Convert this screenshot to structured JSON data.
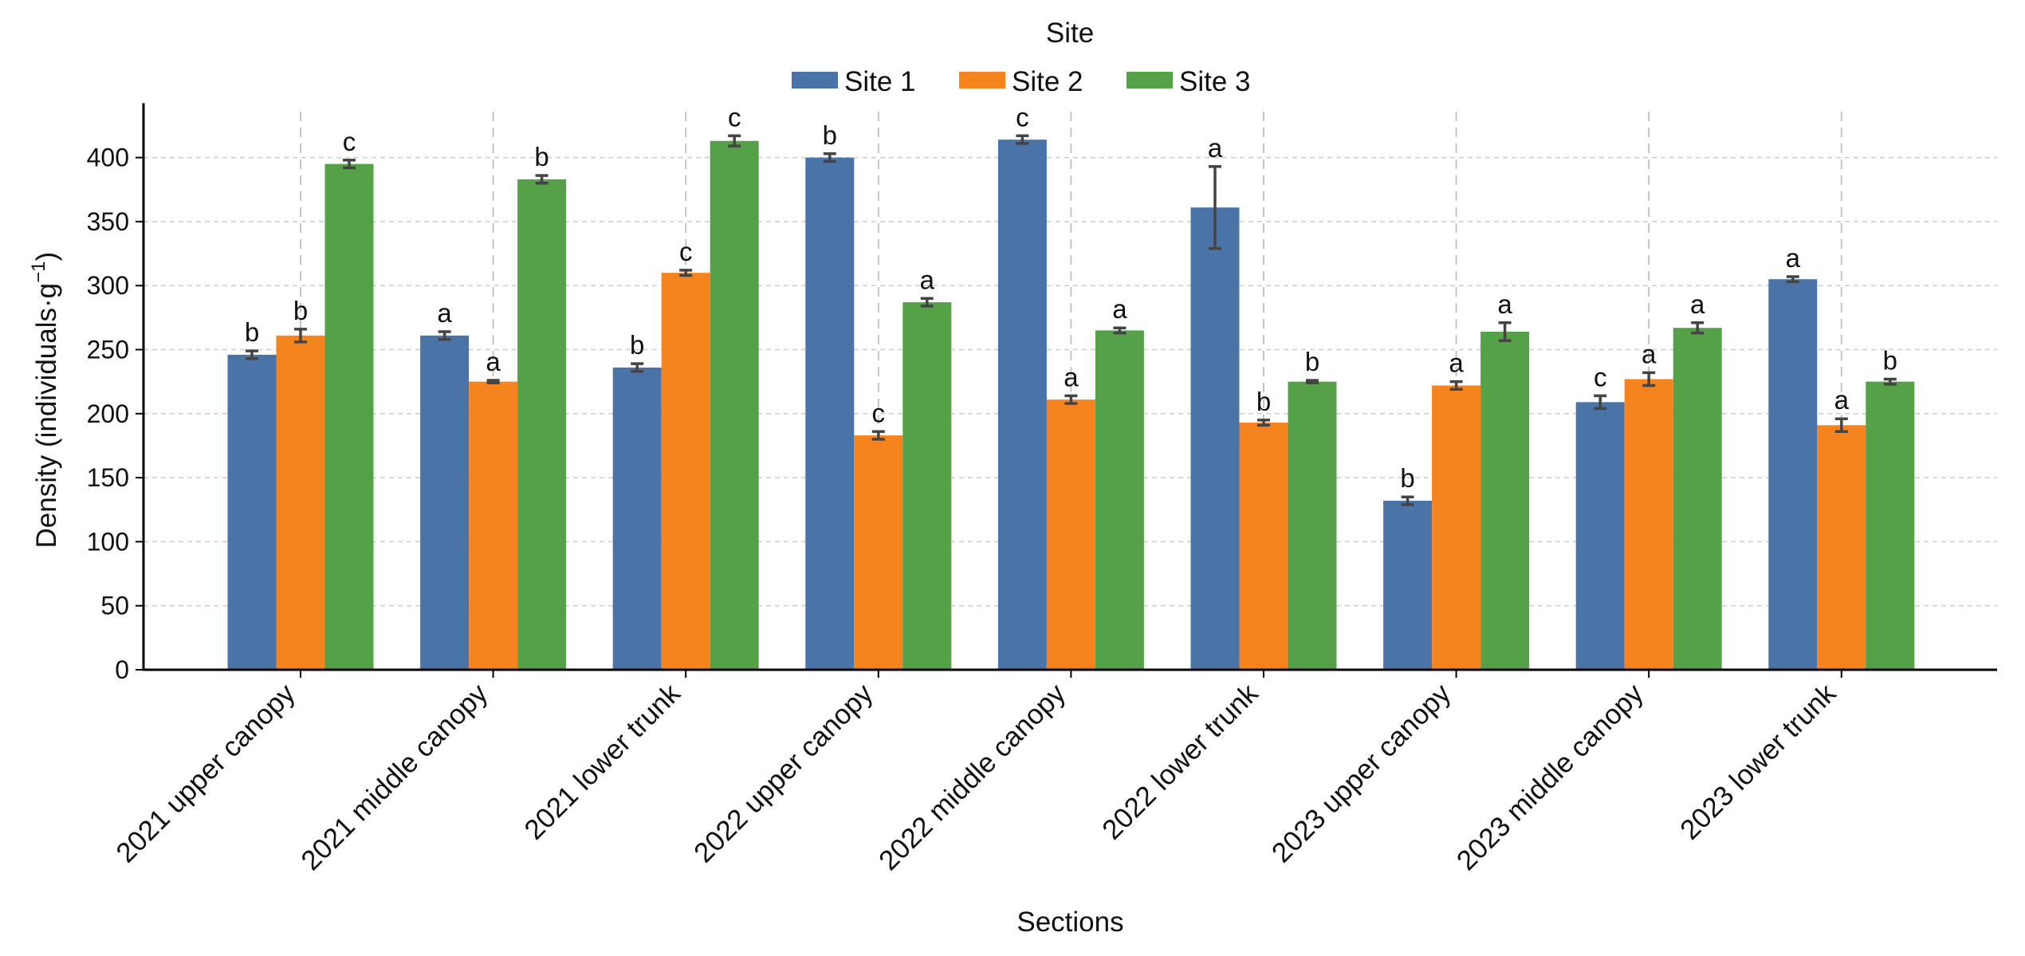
{
  "chart_data": {
    "type": "bar",
    "title": "",
    "xlabel": "Sections",
    "ylabel": "Density (individuals·g⁻¹)",
    "ylabel_parts": {
      "main": "Density (individuals·g",
      "sup": "−1",
      "close": ")"
    },
    "ylim": [
      0,
      440
    ],
    "yticks": [
      0,
      50,
      100,
      150,
      200,
      250,
      300,
      350,
      400
    ],
    "grid": true,
    "legend": {
      "title": "Site",
      "position": "top-center"
    },
    "categories": [
      "2021 upper canopy",
      "2021 middle canopy",
      "2021 lower trunk",
      "2022 upper canopy",
      "2022 middle canopy",
      "2022 lower trunk",
      "2023 upper canopy",
      "2023 middle canopy",
      "2023 lower trunk"
    ],
    "series": [
      {
        "name": "Site 1",
        "color": "#4a74a8",
        "values": [
          246,
          261,
          236,
          400,
          414,
          361,
          132,
          209,
          305
        ],
        "errors": [
          3,
          3,
          3,
          3,
          3,
          32,
          3,
          5,
          2
        ],
        "letters": [
          "b",
          "a",
          "b",
          "b",
          "c",
          "a",
          "b",
          "c",
          "a"
        ]
      },
      {
        "name": "Site 2",
        "color": "#f5841f",
        "values": [
          261,
          225,
          310,
          183,
          211,
          193,
          222,
          227,
          191
        ],
        "errors": [
          5,
          1,
          2,
          3,
          3,
          2,
          3,
          5,
          5
        ],
        "letters": [
          "b",
          "a",
          "c",
          "c",
          "a",
          "b",
          "a",
          "a",
          "a"
        ]
      },
      {
        "name": "Site 3",
        "color": "#55a147",
        "values": [
          395,
          383,
          413,
          287,
          265,
          225,
          264,
          267,
          225
        ],
        "errors": [
          3,
          3,
          4,
          3,
          2,
          1,
          7,
          4,
          2
        ],
        "letters": [
          "c",
          "b",
          "c",
          "a",
          "a",
          "b",
          "a",
          "a",
          "b"
        ]
      }
    ]
  }
}
